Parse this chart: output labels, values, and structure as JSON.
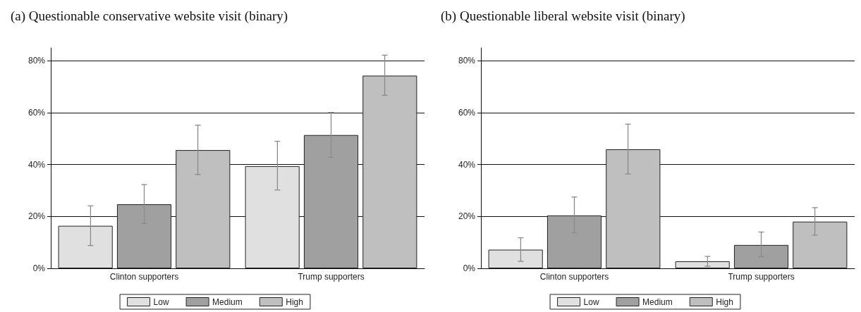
{
  "chart_data": [
    {
      "type": "bar",
      "title": "(a) Questionable conservative website visit (binary)",
      "categories": [
        "Clinton supporters",
        "Trump supporters"
      ],
      "series": [
        {
          "name": "Low",
          "color": "#e0e0e0",
          "values": [
            16.4,
            39.4
          ],
          "errors": [
            [
              8.8,
              24.1
            ],
            [
              30.2,
              49.0
            ]
          ]
        },
        {
          "name": "Medium",
          "color": "#a0a0a0",
          "values": [
            24.7,
            51.4
          ],
          "errors": [
            [
              17.3,
              32.3
            ],
            [
              42.8,
              60.1
            ]
          ]
        },
        {
          "name": "High",
          "color": "#bfbfbf",
          "values": [
            45.6,
            74.3
          ],
          "errors": [
            [
              36.2,
              55.2
            ],
            [
              66.7,
              82.2
            ]
          ]
        }
      ],
      "ylim": [
        0,
        85
      ],
      "yticks": [
        {
          "value": 0,
          "label": "0%"
        },
        {
          "value": 20,
          "label": "20%"
        },
        {
          "value": 40,
          "label": "40%"
        },
        {
          "value": 60,
          "label": "60%"
        },
        {
          "value": 80,
          "label": "80%"
        }
      ],
      "grid": "y",
      "legend": "bottom"
    },
    {
      "type": "bar",
      "title": "(b) Questionable liberal website visit (binary)",
      "categories": [
        "Clinton supporters",
        "Trump supporters"
      ],
      "series": [
        {
          "name": "Low",
          "color": "#e0e0e0",
          "values": [
            7.2,
            2.7
          ],
          "errors": [
            [
              2.7,
              11.8
            ],
            [
              0.8,
              4.6
            ]
          ]
        },
        {
          "name": "Medium",
          "color": "#a0a0a0",
          "values": [
            20.4,
            9.0
          ],
          "errors": [
            [
              13.8,
              27.5
            ],
            [
              4.5,
              14.0
            ]
          ]
        },
        {
          "name": "High",
          "color": "#bfbfbf",
          "values": [
            45.9,
            18.0
          ],
          "errors": [
            [
              36.4,
              55.6
            ],
            [
              12.8,
              23.4
            ]
          ]
        }
      ],
      "ylim": [
        0,
        85
      ],
      "yticks": [
        {
          "value": 0,
          "label": "0%"
        },
        {
          "value": 20,
          "label": "20%"
        },
        {
          "value": 40,
          "label": "40%"
        },
        {
          "value": 60,
          "label": "60%"
        },
        {
          "value": 80,
          "label": "80%"
        }
      ],
      "grid": "y",
      "legend": "bottom"
    }
  ]
}
